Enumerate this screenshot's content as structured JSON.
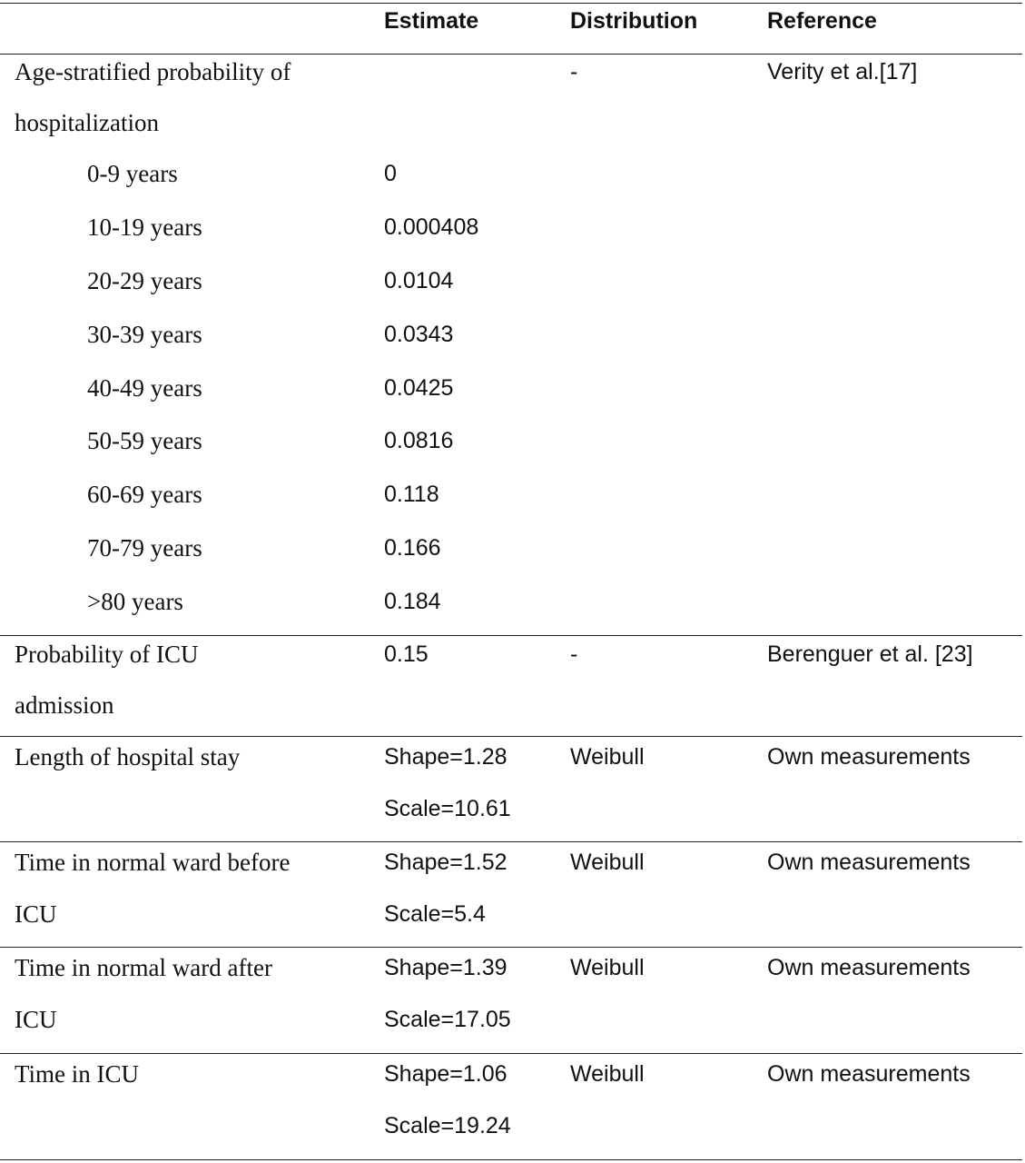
{
  "header": {
    "col1": "",
    "estimate": "Estimate",
    "distribution": "Distribution",
    "reference": "Reference"
  },
  "age_block": {
    "param_line1": "Age-stratified probability of",
    "param_line2": "hospitalization",
    "distribution": "-",
    "reference": "Verity et al.[17]",
    "rows": [
      {
        "age": "0-9 years",
        "value": "0"
      },
      {
        "age": "10-19 years",
        "value": "0.000408"
      },
      {
        "age": "20-29 years",
        "value": "0.0104"
      },
      {
        "age": "30-39 years",
        "value": "0.0343"
      },
      {
        "age": "40-49 years",
        "value": "0.0425"
      },
      {
        "age": "50-59 years",
        "value": "0.0816"
      },
      {
        "age": "60-69 years",
        "value": "0.118"
      },
      {
        "age": "70-79 years",
        "value": "0.166"
      },
      {
        "age": ">80 years",
        "value": "0.184"
      }
    ]
  },
  "icu": {
    "param_line1": "Probability of ICU",
    "param_line2": "admission",
    "estimate": "0.15",
    "distribution": "-",
    "reference": "Berenguer et al. [23]"
  },
  "stays": [
    {
      "param_line1": "Length of hospital stay",
      "param_line2": "",
      "shape": "Shape=1.28",
      "scale": "Scale=10.61",
      "distribution": "Weibull",
      "reference": "Own measurements"
    },
    {
      "param_line1": "Time in normal ward before",
      "param_line2": "ICU",
      "shape": "Shape=1.52",
      "scale": "Scale=5.4",
      "distribution": "Weibull",
      "reference": "Own measurements"
    },
    {
      "param_line1": "Time in normal ward after",
      "param_line2": "ICU",
      "shape": "Shape=1.39",
      "scale": "Scale=17.05",
      "distribution": "Weibull",
      "reference": "Own measurements"
    },
    {
      "param_line1": "Time in ICU",
      "param_line2": "",
      "shape": "Shape=1.06",
      "scale": "Scale=19.24",
      "distribution": "Weibull",
      "reference": "Own measurements"
    }
  ]
}
